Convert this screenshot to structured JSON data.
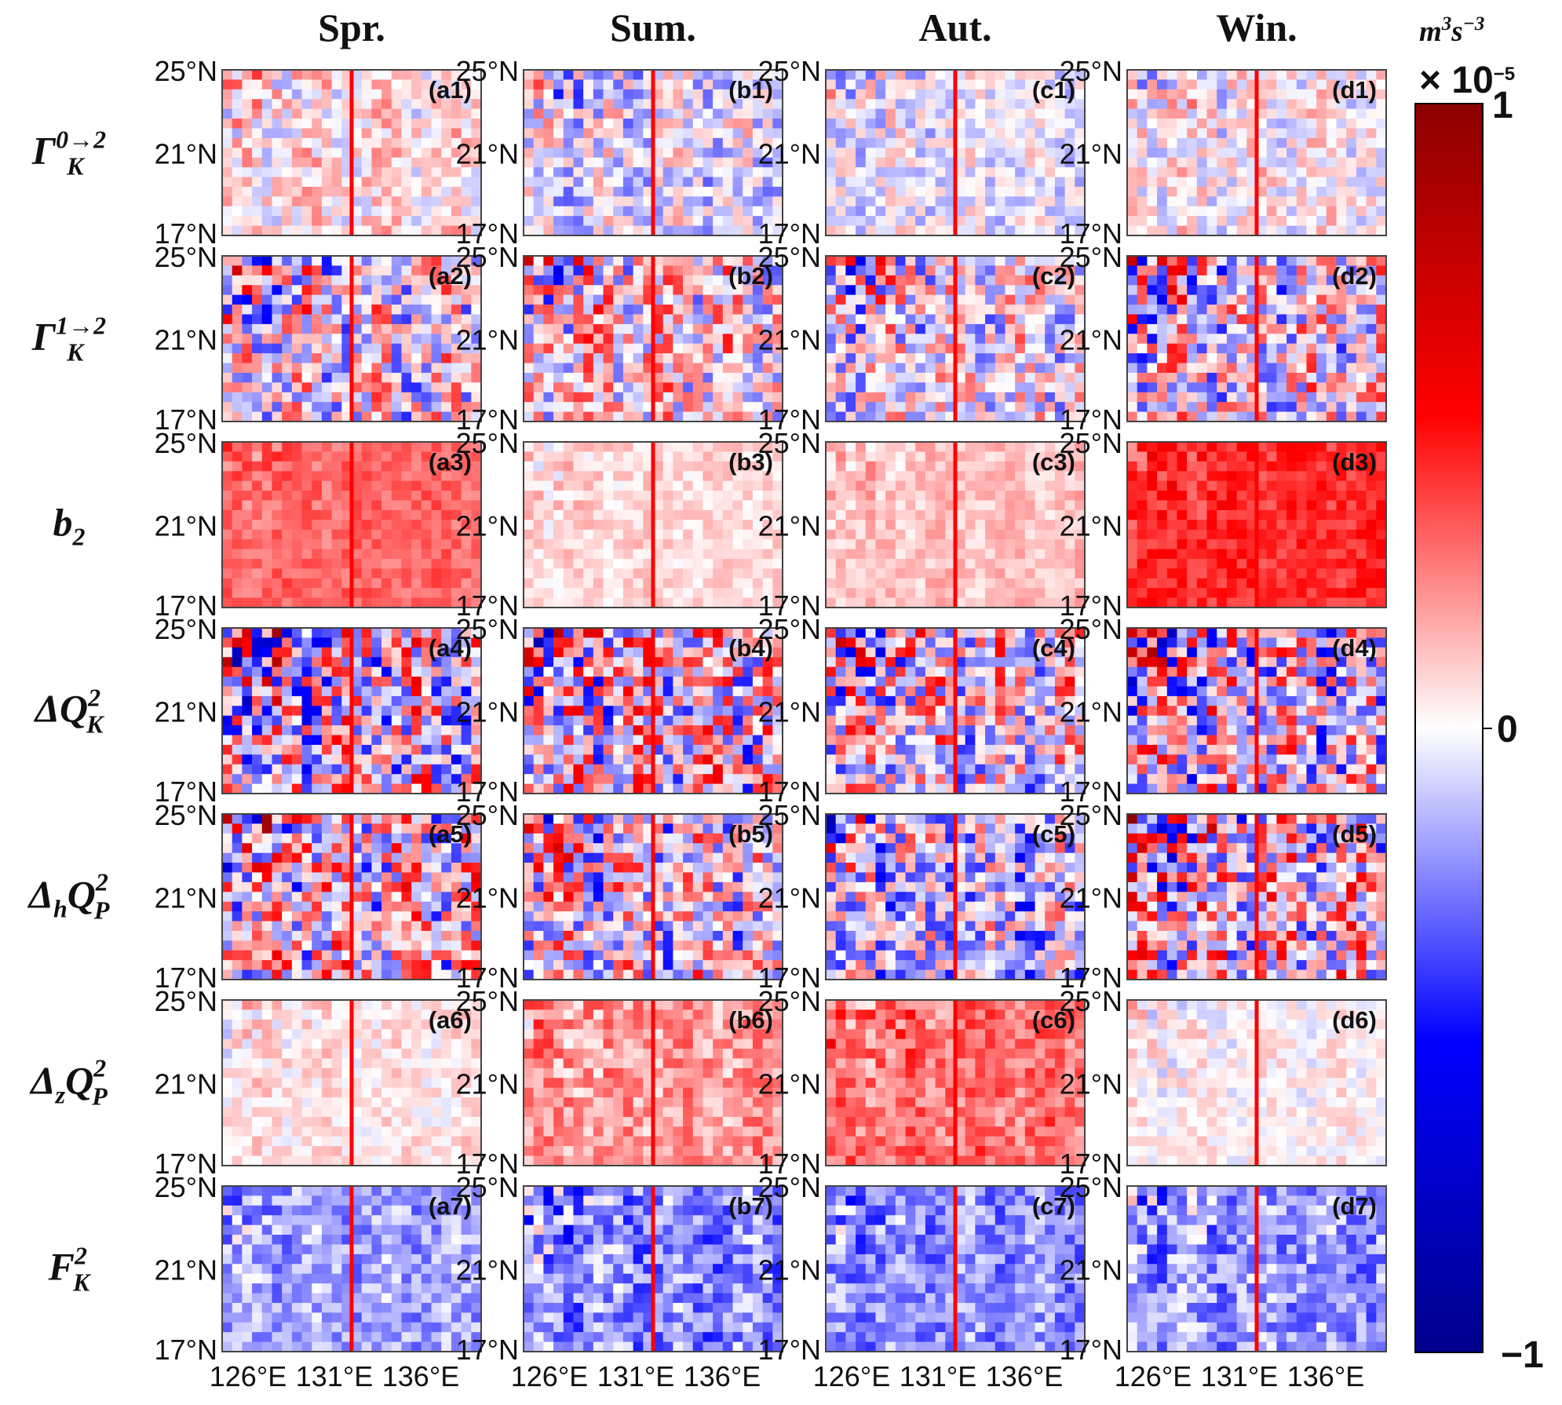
{
  "chart_data": {
    "type": "heatmap",
    "title": "",
    "columns": [
      "Spr.",
      "Sum.",
      "Aut.",
      "Win."
    ],
    "rows": [
      {
        "base": "Γ",
        "sub": "K",
        "sup": "0→2"
      },
      {
        "base": "Γ",
        "sub": "K",
        "sup": "1→2"
      },
      {
        "base": "b",
        "sub": "2",
        "sup": ""
      },
      {
        "base": "ΔQ",
        "sub": "K",
        "sup": "2"
      },
      {
        "base": "Δ",
        "sub": "h",
        "mid": "Q",
        "sub2": "P",
        "sup": "2"
      },
      {
        "base": "Δ",
        "sub": "z",
        "mid": "Q",
        "sub2": "P",
        "sup": "2"
      },
      {
        "base": "F",
        "sub": "K",
        "sup": "2"
      }
    ],
    "panel_labels": [
      [
        "(a1)",
        "(b1)",
        "(c1)",
        "(d1)"
      ],
      [
        "(a2)",
        "(b2)",
        "(c2)",
        "(d2)"
      ],
      [
        "(a3)",
        "(b3)",
        "(c3)",
        "(d3)"
      ],
      [
        "(a4)",
        "(b4)",
        "(c4)",
        "(d4)"
      ],
      [
        "(a5)",
        "(b5)",
        "(c5)",
        "(d5)"
      ],
      [
        "(a6)",
        "(b6)",
        "(c6)",
        "(d6)"
      ],
      [
        "(a7)",
        "(b7)",
        "(c7)",
        "(d7)"
      ]
    ],
    "panel_mean_value": [
      [
        0.05,
        -0.05,
        -0.03,
        0.02
      ],
      [
        0.0,
        0.05,
        0.0,
        0.0
      ],
      [
        0.3,
        0.08,
        0.12,
        0.42
      ],
      [
        0.0,
        0.05,
        0.02,
        0.0
      ],
      [
        0.05,
        0.0,
        -0.1,
        0.05
      ],
      [
        0.05,
        0.2,
        0.28,
        0.02
      ],
      [
        -0.18,
        -0.22,
        -0.22,
        -0.2
      ]
    ],
    "panel_variability": [
      [
        0.22,
        0.28,
        0.2,
        0.22
      ],
      [
        0.45,
        0.42,
        0.38,
        0.48
      ],
      [
        0.1,
        0.1,
        0.1,
        0.12
      ],
      [
        0.6,
        0.55,
        0.5,
        0.58
      ],
      [
        0.55,
        0.48,
        0.45,
        0.55
      ],
      [
        0.12,
        0.18,
        0.18,
        0.12
      ],
      [
        0.18,
        0.25,
        0.2,
        0.22
      ]
    ],
    "lat_ticks": [
      "25°N",
      "21°N",
      "17°N"
    ],
    "lat_range": [
      17,
      25
    ],
    "lon_ticks": [
      "126°E",
      "131°E",
      "136°E"
    ],
    "lon_range": [
      124.5,
      139.5
    ],
    "reference_line_lon": 132,
    "reference_line_color": "#ff0000",
    "colorbar": {
      "min": -1,
      "max": 1,
      "tick_labels": [
        "1",
        "0",
        "−1"
      ],
      "scale_label": "× 10",
      "scale_exp": "−5",
      "unit_main": "m",
      "unit_exp1": "3",
      "unit_s": "s",
      "unit_exp2": "−3",
      "colors": [
        "#00008b",
        "#0000ff",
        "#ffffff",
        "#ff0000",
        "#8b0000"
      ]
    }
  }
}
